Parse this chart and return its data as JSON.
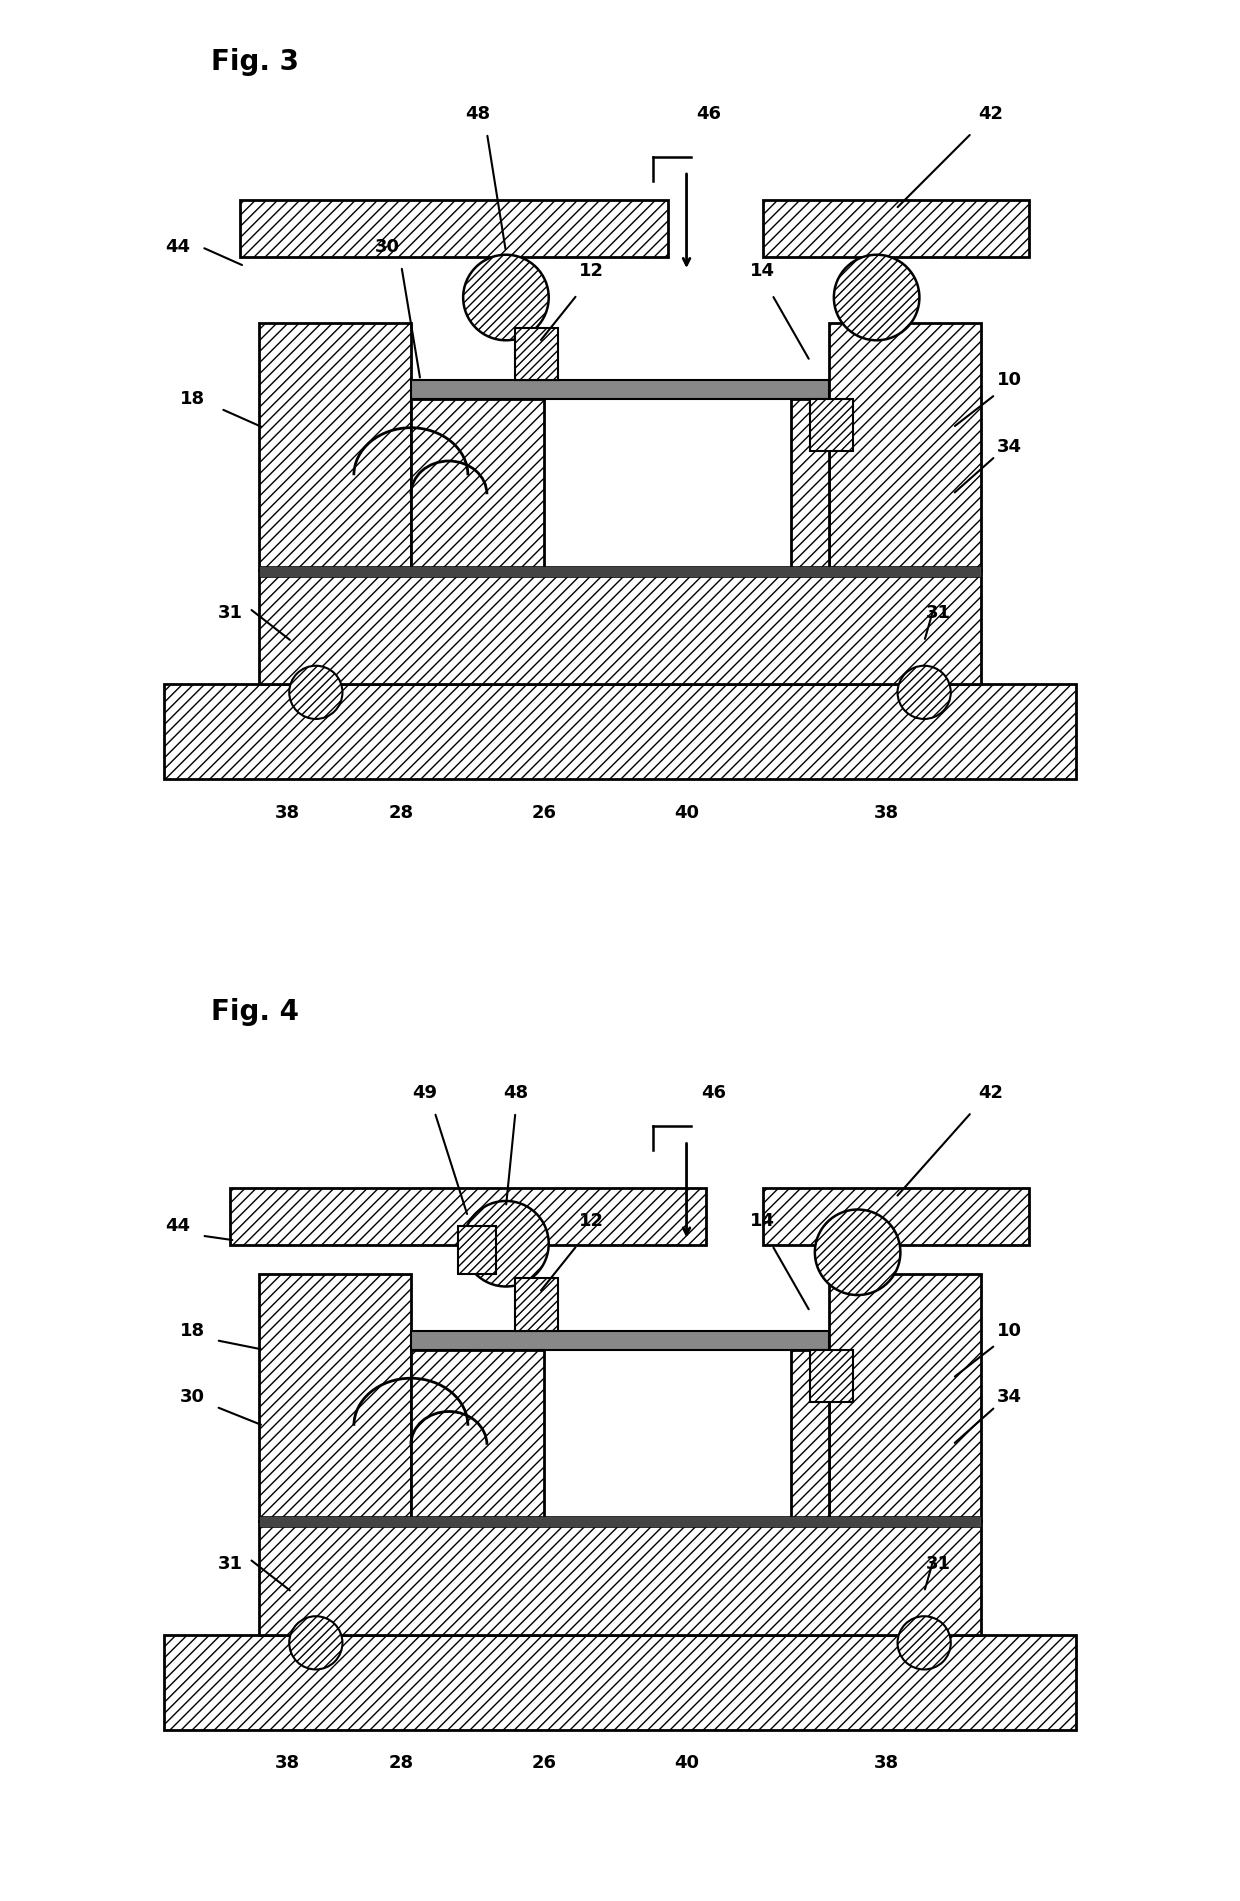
{
  "fig3_title": "Fig. 3",
  "fig4_title": "Fig. 4",
  "bg_color": "#ffffff",
  "lw_thick": 2.0,
  "lw_thin": 1.5,
  "lw_membrane": 2.5,
  "label_fontsize": 13,
  "title_fontsize": 20,
  "hatch_dense": "////",
  "hatch_normal": "///",
  "hatch_ball": "////"
}
